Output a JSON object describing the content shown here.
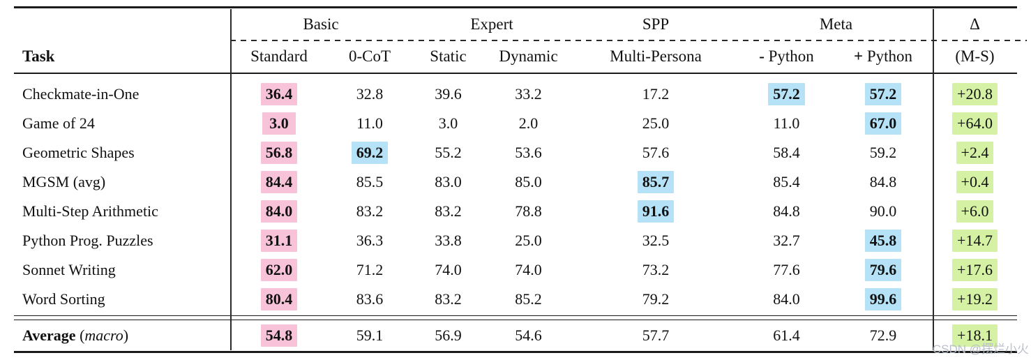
{
  "watermark": "CSDN @摆烂小火",
  "colors": {
    "pink": "#F8C3D8",
    "blue": "#B5E2F6",
    "green": "#D5F2A4"
  },
  "table": {
    "task_header": "Task",
    "groups": {
      "basic": "Basic",
      "expert": "Expert",
      "spp": "SPP",
      "meta": "Meta",
      "delta": "Δ"
    },
    "columns": [
      "Standard",
      "0-CoT",
      "Static",
      "Dynamic",
      "Multi-Persona"
    ],
    "meta_columns": [
      {
        "sign": "-",
        "label": "Python"
      },
      {
        "sign": "+",
        "label": "Python"
      }
    ],
    "delta_header": "(M-S)",
    "rows": [
      {
        "task": "Checkmate-in-One",
        "values": [
          "36.4",
          "32.8",
          "39.6",
          "33.2",
          "17.2",
          "57.2",
          "57.2",
          "+20.8"
        ],
        "highlights": [
          "pink",
          "",
          "",
          "",
          "",
          "blue",
          "blue",
          "green"
        ]
      },
      {
        "task": "Game of 24",
        "values": [
          "3.0",
          "11.0",
          "3.0",
          "2.0",
          "25.0",
          "11.0",
          "67.0",
          "+64.0"
        ],
        "highlights": [
          "pink",
          "",
          "",
          "",
          "",
          "",
          "blue",
          "green"
        ]
      },
      {
        "task": "Geometric Shapes",
        "values": [
          "56.8",
          "69.2",
          "55.2",
          "53.6",
          "57.6",
          "58.4",
          "59.2",
          "+2.4"
        ],
        "highlights": [
          "pink",
          "blue",
          "",
          "",
          "",
          "",
          "",
          "green"
        ]
      },
      {
        "task": "MGSM (avg)",
        "values": [
          "84.4",
          "85.5",
          "83.0",
          "85.0",
          "85.7",
          "85.4",
          "84.8",
          "+0.4"
        ],
        "highlights": [
          "pink",
          "",
          "",
          "",
          "blue",
          "",
          "",
          "green"
        ]
      },
      {
        "task": "Multi-Step Arithmetic",
        "values": [
          "84.0",
          "83.2",
          "83.2",
          "78.8",
          "91.6",
          "84.8",
          "90.0",
          "+6.0"
        ],
        "highlights": [
          "pink",
          "",
          "",
          "",
          "blue",
          "",
          "",
          "green"
        ]
      },
      {
        "task": "Python Prog. Puzzles",
        "values": [
          "31.1",
          "36.3",
          "33.8",
          "25.0",
          "32.5",
          "32.7",
          "45.8",
          "+14.7"
        ],
        "highlights": [
          "pink",
          "",
          "",
          "",
          "",
          "",
          "blue",
          "green"
        ]
      },
      {
        "task": "Sonnet Writing",
        "values": [
          "62.0",
          "71.2",
          "74.0",
          "74.0",
          "73.2",
          "77.6",
          "79.6",
          "+17.6"
        ],
        "highlights": [
          "pink",
          "",
          "",
          "",
          "",
          "",
          "blue",
          "green"
        ]
      },
      {
        "task": "Word Sorting",
        "values": [
          "80.4",
          "83.6",
          "83.2",
          "85.2",
          "79.2",
          "84.0",
          "99.6",
          "+19.2"
        ],
        "highlights": [
          "pink",
          "",
          "",
          "",
          "",
          "",
          "blue",
          "green"
        ]
      }
    ],
    "average": {
      "label": "Average",
      "paren_open": "(",
      "macro_word": "macro",
      "paren_close": ")",
      "values": [
        "54.8",
        "59.1",
        "56.9",
        "54.6",
        "57.7",
        "61.4",
        "72.9",
        "+18.1"
      ],
      "highlights": [
        "pink",
        "",
        "",
        "",
        "",
        "",
        "",
        "green"
      ]
    }
  }
}
